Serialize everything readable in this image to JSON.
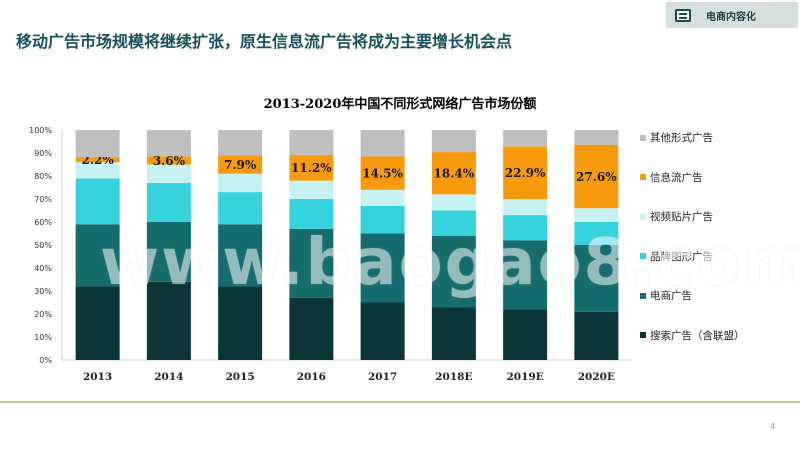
{
  "header": {
    "title": "移动广告市场规模将继续扩张，原生信息流广告将成为主要增长机会点",
    "badge_label": "电商内容化",
    "badge_icon": "document-icon"
  },
  "watermark": "www.baogao8.com",
  "page_number": "4",
  "chart_data": {
    "type": "bar",
    "stacked": true,
    "title": "2013-2020年中国不同形式网络广告市场份额",
    "categories": [
      "2013",
      "2014",
      "2015",
      "2016",
      "2017",
      "2018E",
      "2019E",
      "2020E"
    ],
    "ylim": [
      0,
      100
    ],
    "yticks": [
      "0%",
      "10%",
      "20%",
      "30%",
      "40%",
      "50%",
      "60%",
      "70%",
      "80%",
      "90%",
      "100%"
    ],
    "grid": false,
    "legend_position": "right",
    "series": [
      {
        "name": "搜索广告（含联盟）",
        "color": "#0b3536",
        "values": [
          32,
          34,
          32,
          27,
          25,
          23,
          22,
          21
        ]
      },
      {
        "name": "电商广告",
        "color": "#156c6d",
        "values": [
          27,
          26,
          27,
          30,
          30,
          31,
          30,
          29
        ]
      },
      {
        "name": "品牌图形广告",
        "color": "#36d3dc",
        "values": [
          20,
          17,
          14,
          13,
          12,
          11,
          11,
          10
        ]
      },
      {
        "name": "视频贴片广告",
        "color": "#c7f1f3",
        "values": [
          7,
          8,
          8,
          8,
          7,
          7,
          7,
          6
        ]
      },
      {
        "name": "信息流广告",
        "color": "#f79a0e",
        "values": [
          2.2,
          3.6,
          7.9,
          11.2,
          14.5,
          18.4,
          22.9,
          27.6
        ]
      },
      {
        "name": "其他形式广告",
        "color": "#bfbfbf",
        "values": [
          11.8,
          11.4,
          11.1,
          10.8,
          11.5,
          9.6,
          7.1,
          6.4
        ]
      }
    ],
    "data_labels": {
      "series": "信息流广告",
      "labels": [
        "2.2%",
        "3.6%",
        "7.9%",
        "11.2%",
        "14.5%",
        "18.4%",
        "22.9%",
        "27.6%"
      ]
    }
  }
}
